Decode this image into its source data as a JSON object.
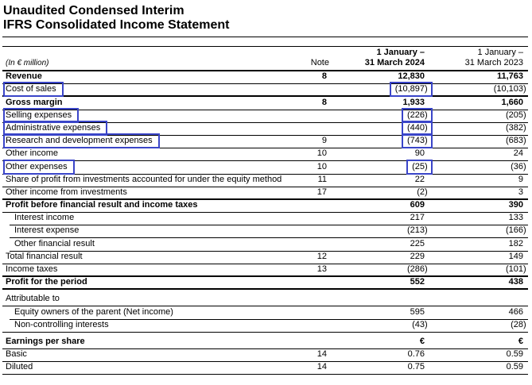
{
  "annotation_color": "#3a45c8",
  "title": {
    "line1": "Unaudited Condensed Interim",
    "line2": "IFRS Consolidated Income Statement"
  },
  "header": {
    "unit_label": "(In € million)",
    "note_label": "Note",
    "period_2024": {
      "line1": "1 January –",
      "line2": "31 March 2024"
    },
    "period_2023": {
      "line1": "1 January –",
      "line2": "31 March 2023"
    }
  },
  "table": {
    "rows": [
      {
        "label": "Revenue",
        "note": "8",
        "v2024": "12,830",
        "v2023": "11,763",
        "bold": true
      },
      {
        "label": "Cost of sales",
        "note": "",
        "v2024": "(10,897)",
        "v2023": "(10,103)",
        "box_label": true,
        "box_value": true,
        "thick_bottom": true
      },
      {
        "label": "Gross margin",
        "note": "8",
        "v2024": "1,933",
        "v2023": "1,660",
        "bold": true
      },
      {
        "label": "Selling expenses",
        "note": "",
        "v2024": "(226)",
        "v2023": "(205)",
        "box_label": true,
        "box_value": true
      },
      {
        "label": "Administrative expenses",
        "note": "",
        "v2024": "(440)",
        "v2023": "(382)",
        "box_label": true,
        "box_value": true
      },
      {
        "label": "Research and development expenses",
        "note": "9",
        "v2024": "(743)",
        "v2023": "(683)",
        "box_label": true,
        "box_value": true
      },
      {
        "label": "Other income",
        "note": "10",
        "v2024": "90",
        "v2023": "24"
      },
      {
        "label": "Other expenses",
        "note": "10",
        "v2024": "(25)",
        "v2023": "(36)",
        "box_label": true,
        "box_value": true
      },
      {
        "label": "Share of profit from investments accounted for under the equity method",
        "note": "11",
        "v2024": "22",
        "v2023": "9"
      },
      {
        "label": "Other income from investments",
        "note": "17",
        "v2024": "(2)",
        "v2023": "3",
        "thick_bottom": true
      },
      {
        "label": "Profit before financial result and income taxes",
        "note": "",
        "v2024": "609",
        "v2023": "390",
        "bold": true
      },
      {
        "label": "Interest income",
        "note": "",
        "v2024": "217",
        "v2023": "133",
        "indent": true,
        "line_indent": true
      },
      {
        "label": "Interest expense",
        "note": "",
        "v2024": "(213)",
        "v2023": "(166)",
        "indent": true,
        "line_indent": true
      },
      {
        "label": "Other financial result",
        "note": "",
        "v2024": "225",
        "v2023": "182",
        "indent": true,
        "line_indent": true
      },
      {
        "label": "Total financial result",
        "note": "12",
        "v2024": "229",
        "v2023": "149"
      },
      {
        "label": "Income taxes",
        "note": "13",
        "v2024": "(286)",
        "v2023": "(101)",
        "thick_bottom": true
      },
      {
        "label": "Profit for the period",
        "note": "",
        "v2024": "552",
        "v2023": "438",
        "bold": true,
        "thick_bottom": true
      }
    ]
  },
  "attributable": {
    "rows": [
      {
        "label": "Attributable to",
        "note": "",
        "v2024": "",
        "v2023": ""
      },
      {
        "label": "Equity owners of the parent (Net income)",
        "note": "",
        "v2024": "595",
        "v2023": "466",
        "indent": true,
        "line_indent": true
      },
      {
        "label": "Non-controlling interests",
        "note": "",
        "v2024": "(43)",
        "v2023": "(28)",
        "indent": true
      }
    ]
  },
  "eps": {
    "rows": [
      {
        "label": "Earnings per share",
        "note": "",
        "v2024": "€",
        "v2023": "€",
        "bold": true
      },
      {
        "label": "Basic",
        "note": "14",
        "v2024": "0.76",
        "v2023": "0.59"
      },
      {
        "label": "Diluted",
        "note": "14",
        "v2024": "0.75",
        "v2023": "0.59"
      }
    ]
  }
}
